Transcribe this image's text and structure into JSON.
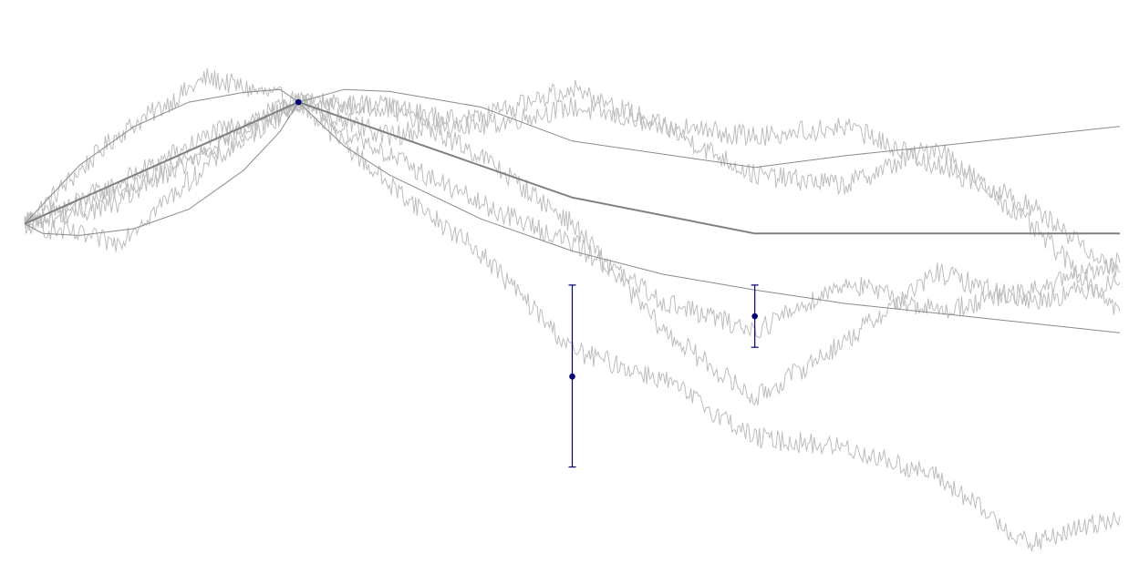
{
  "colors": {
    "background": "#ffffff",
    "sample_paths": "#bdbdbd",
    "envelope": "#8a8a8a",
    "mean": "#808080",
    "observations": "#000070"
  },
  "chart_data": {
    "type": "line",
    "title": "",
    "xlabel": "",
    "ylabel": "",
    "axes_visible": false,
    "grid": false,
    "legend": "none",
    "xlim": [
      0,
      6
    ],
    "ylim": [
      -3.6,
      2.3
    ],
    "mean": {
      "x": [
        0,
        1.5,
        3,
        4,
        6
      ],
      "y": [
        0,
        1.25,
        0.27,
        -0.1,
        -0.1
      ]
    },
    "envelope_upper": {
      "x": [
        0,
        0.3,
        0.6,
        0.9,
        1.2,
        1.4,
        1.5,
        1.75,
        2,
        2.5,
        3,
        4,
        4.5,
        5,
        5.5,
        6
      ],
      "y": [
        0,
        0.6,
        1.0,
        1.25,
        1.35,
        1.38,
        1.25,
        1.38,
        1.36,
        1.2,
        0.85,
        0.58,
        0.7,
        0.8,
        0.9,
        1.0
      ]
    },
    "envelope_lower": {
      "x": [
        0,
        0.1,
        0.3,
        0.6,
        0.9,
        1.2,
        1.4,
        1.5,
        1.75,
        2,
        2.5,
        3,
        3.5,
        4,
        4.5,
        5,
        5.5,
        6
      ],
      "y": [
        0,
        -0.1,
        -0.12,
        -0.05,
        0.15,
        0.55,
        0.95,
        1.25,
        0.8,
        0.5,
        0.05,
        -0.28,
        -0.52,
        -0.68,
        -0.82,
        -0.92,
        -1.02,
        -1.12
      ]
    },
    "observations": [
      {
        "x": 1.5,
        "y": 1.25,
        "yerr_low": 0,
        "yerr_high": 0
      },
      {
        "x": 3.0,
        "y": -1.57,
        "yerr_low": -2.5,
        "yerr_high": -0.63
      },
      {
        "x": 4.0,
        "y": -0.95,
        "yerr_low": -1.27,
        "yerr_high": -0.63
      }
    ],
    "sample_paths": [
      {
        "x": [
          0,
          0.5,
          1.0,
          1.5,
          2,
          2.5,
          3,
          3.5,
          4,
          4.5,
          5,
          5.5,
          6
        ],
        "y": [
          0,
          0.9,
          1.5,
          1.25,
          1.2,
          1.0,
          1.2,
          1.0,
          0.5,
          0.4,
          0.8,
          0.0,
          -0.9
        ]
      },
      {
        "x": [
          0,
          0.5,
          1.0,
          1.5,
          2,
          2.5,
          3,
          3.5,
          4,
          4.5,
          5,
          5.5,
          6
        ],
        "y": [
          0,
          0.4,
          0.9,
          1.25,
          1.2,
          0.7,
          0.0,
          -1.1,
          -1.8,
          -1.2,
          -0.5,
          -0.8,
          -0.6
        ]
      },
      {
        "x": [
          0,
          0.5,
          1.0,
          1.5,
          2,
          2.5,
          3,
          3.5,
          4,
          4.5,
          5,
          5.5,
          6
        ],
        "y": [
          0,
          -0.2,
          0.6,
          1.25,
          0.4,
          -0.3,
          -1.3,
          -1.6,
          -2.2,
          -2.3,
          -2.6,
          -3.3,
          -3.0
        ]
      },
      {
        "x": [
          0,
          0.5,
          1.0,
          1.5,
          2,
          2.5,
          3,
          3.5,
          4,
          4.5,
          5,
          5.5,
          6
        ],
        "y": [
          0,
          0.3,
          0.7,
          1.25,
          0.7,
          0.2,
          -0.2,
          -0.8,
          -1.1,
          -0.6,
          -0.9,
          -0.7,
          -0.4
        ]
      },
      {
        "x": [
          0,
          0.5,
          1.0,
          1.5,
          2,
          2.5,
          3,
          3.5,
          4,
          4.5,
          5,
          5.5,
          6
        ],
        "y": [
          0,
          0.2,
          0.8,
          1.25,
          0.9,
          1.1,
          1.4,
          1.0,
          0.9,
          1.0,
          0.6,
          0.2,
          -0.5
        ]
      }
    ]
  }
}
